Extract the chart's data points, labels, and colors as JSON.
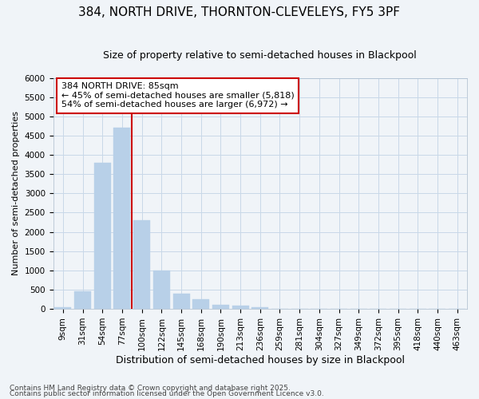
{
  "title_line1": "384, NORTH DRIVE, THORNTON-CLEVELEYS, FY5 3PF",
  "title_line2": "Size of property relative to semi-detached houses in Blackpool",
  "xlabel": "Distribution of semi-detached houses by size in Blackpool",
  "ylabel": "Number of semi-detached properties",
  "categories": [
    "9sqm",
    "31sqm",
    "54sqm",
    "77sqm",
    "100sqm",
    "122sqm",
    "145sqm",
    "168sqm",
    "190sqm",
    "213sqm",
    "236sqm",
    "259sqm",
    "281sqm",
    "304sqm",
    "327sqm",
    "349sqm",
    "372sqm",
    "395sqm",
    "418sqm",
    "440sqm",
    "463sqm"
  ],
  "values": [
    40,
    450,
    3800,
    4700,
    2300,
    1000,
    400,
    250,
    100,
    80,
    50,
    0,
    0,
    0,
    0,
    0,
    0,
    0,
    0,
    0,
    0
  ],
  "bar_color": "#b8d0e8",
  "bar_edge_color": "#b8d0e8",
  "vline_color": "#cc0000",
  "vline_x": 3.5,
  "annotation_text": "384 NORTH DRIVE: 85sqm\n← 45% of semi-detached houses are smaller (5,818)\n54% of semi-detached houses are larger (6,972) →",
  "annotation_box_facecolor": "#ffffff",
  "annotation_box_edgecolor": "#cc0000",
  "ylim": [
    0,
    6000
  ],
  "yticks": [
    0,
    500,
    1000,
    1500,
    2000,
    2500,
    3000,
    3500,
    4000,
    4500,
    5000,
    5500,
    6000
  ],
  "grid_color": "#c8d8e8",
  "background_color": "#f0f4f8",
  "plot_bg_color": "#f0f4f8",
  "footer_line1": "Contains HM Land Registry data © Crown copyright and database right 2025.",
  "footer_line2": "Contains public sector information licensed under the Open Government Licence v3.0.",
  "title_fontsize": 11,
  "subtitle_fontsize": 9,
  "ylabel_fontsize": 8,
  "xlabel_fontsize": 9,
  "tick_fontsize": 7.5,
  "footer_fontsize": 6.5,
  "ann_fontsize": 8
}
